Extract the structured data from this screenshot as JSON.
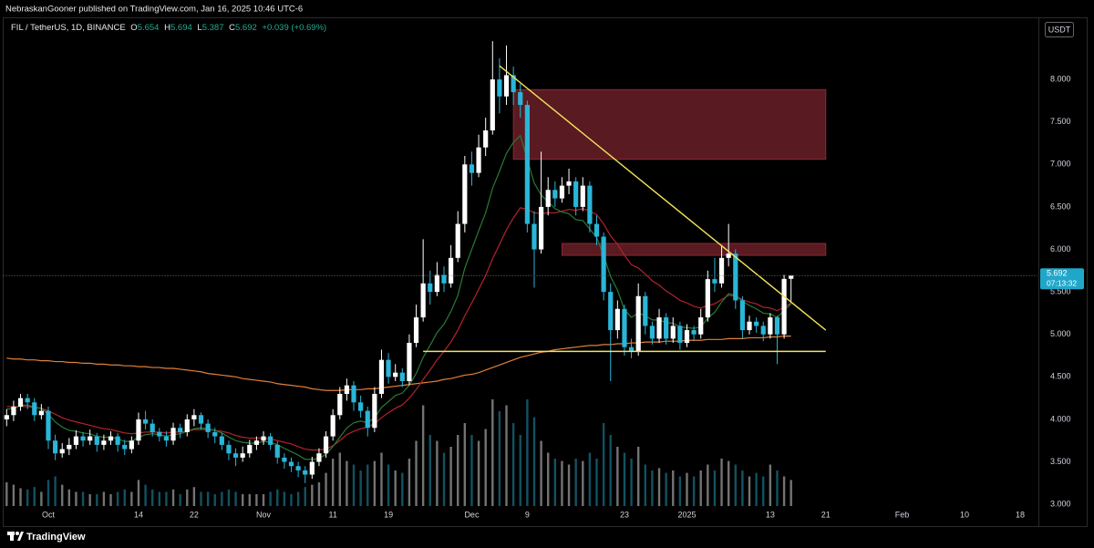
{
  "header": {
    "publisher": "NebraskanGooner published on TradingView.com, Jan 16, 2025 10:46 UTC-6",
    "symbol": "FIL / TetherUS, 1D, BINANCE",
    "ohlc": [
      {
        "label": "O",
        "value": 5.654
      },
      {
        "label": "H",
        "value": 5.694
      },
      {
        "label": "L",
        "value": 5.387
      },
      {
        "label": "C",
        "value": 5.692
      }
    ],
    "change": "+0.039 (+0.69%)"
  },
  "footer": {
    "brand": "TradingView"
  },
  "chart_data": {
    "type": "candlestick",
    "currency": "USDT",
    "countdown": "07:13:32",
    "up_color": "#ffffff",
    "down_color": "#29b6d8",
    "categories": [
      null,
      null,
      null,
      null,
      null,
      null,
      "Oct",
      null,
      null,
      null,
      null,
      null,
      null,
      null,
      null,
      null,
      null,
      null,
      null,
      "14",
      null,
      null,
      null,
      null,
      null,
      null,
      null,
      "22",
      null,
      null,
      null,
      null,
      null,
      null,
      null,
      null,
      null,
      "Nov",
      null,
      null,
      null,
      null,
      null,
      null,
      null,
      null,
      null,
      "11",
      null,
      null,
      null,
      null,
      null,
      null,
      null,
      "19",
      null,
      null,
      null,
      null,
      null,
      null,
      null,
      null,
      null,
      null,
      null,
      "Dec",
      null,
      null,
      null,
      null,
      null,
      null,
      null,
      "9",
      null,
      null,
      null,
      null,
      null,
      null,
      null,
      null,
      null,
      null,
      null,
      null,
      null,
      "23",
      null,
      null,
      null,
      null,
      null,
      null,
      null,
      null,
      "2025",
      null,
      null,
      null,
      null,
      null,
      null,
      null,
      null,
      null,
      null,
      null,
      "13",
      null,
      null,
      null,
      null,
      null,
      null,
      null,
      "21",
      null,
      null,
      null,
      null,
      null,
      null,
      null,
      null,
      null,
      null,
      "Feb",
      null,
      null,
      null,
      null,
      null,
      null,
      null,
      null,
      "10",
      null,
      null,
      null,
      null,
      null,
      null,
      null,
      "18",
      null,
      null
    ],
    "open": [
      4.0,
      4.05,
      4.15,
      4.25,
      4.2,
      4.05,
      4.1,
      3.75,
      3.6,
      3.65,
      3.7,
      3.8,
      3.75,
      3.8,
      3.7,
      3.75,
      3.8,
      3.7,
      3.65,
      3.75,
      4.0,
      3.95,
      3.85,
      3.8,
      3.75,
      3.9,
      3.85,
      4.0,
      4.05,
      3.95,
      3.85,
      3.8,
      3.7,
      3.6,
      3.55,
      3.6,
      3.7,
      3.75,
      3.8,
      3.7,
      3.55,
      3.5,
      3.45,
      3.4,
      3.35,
      3.5,
      3.6,
      3.8,
      4.05,
      4.3,
      4.4,
      4.2,
      4.1,
      3.9,
      4.3,
      4.7,
      4.5,
      4.55,
      4.45,
      4.9,
      5.2,
      5.6,
      5.5,
      5.7,
      5.6,
      5.9,
      6.3,
      7.0,
      6.9,
      7.2,
      7.4,
      8.0,
      7.8,
      8.05,
      7.85,
      7.7,
      6.3,
      6.0,
      6.5,
      6.7,
      6.6,
      6.75,
      6.8,
      6.5,
      6.75,
      6.3,
      6.15,
      5.5,
      5.05,
      5.3,
      4.85,
      4.8,
      5.45,
      5.1,
      4.95,
      5.2,
      4.95,
      5.1,
      4.9,
      5.05,
      5.0,
      5.2,
      5.65,
      5.6,
      5.9,
      5.95,
      5.4,
      5.05,
      5.15,
      5.1,
      5.0,
      5.2,
      5.0,
      5.654,
      null,
      null,
      null,
      null,
      null,
      null,
      null,
      null,
      null,
      null,
      null,
      null,
      null,
      null,
      null,
      null,
      null,
      null,
      null,
      null,
      null,
      null,
      null,
      null,
      null,
      null,
      null,
      null,
      null,
      null,
      null,
      null,
      null,
      null,
      null
    ],
    "high": [
      4.12,
      4.22,
      4.3,
      4.3,
      4.25,
      4.18,
      4.15,
      3.82,
      3.72,
      3.78,
      3.87,
      3.85,
      3.88,
      3.84,
      3.82,
      3.86,
      3.84,
      3.76,
      3.8,
      4.08,
      4.1,
      4.0,
      3.9,
      3.86,
      3.96,
      3.95,
      4.06,
      4.12,
      4.08,
      4.0,
      3.9,
      3.84,
      3.75,
      3.66,
      3.68,
      3.76,
      3.8,
      3.86,
      3.84,
      3.74,
      3.6,
      3.55,
      3.5,
      3.45,
      3.56,
      3.66,
      3.86,
      4.12,
      4.38,
      4.48,
      4.45,
      4.28,
      4.15,
      4.38,
      4.82,
      4.78,
      4.65,
      4.6,
      5.0,
      5.35,
      6.12,
      5.75,
      5.85,
      5.8,
      6.05,
      6.45,
      7.1,
      7.15,
      7.35,
      7.55,
      8.45,
      8.25,
      8.4,
      8.15,
      7.95,
      7.75,
      6.45,
      7.15,
      6.85,
      6.8,
      6.85,
      6.95,
      6.85,
      6.85,
      6.8,
      6.4,
      6.2,
      5.6,
      5.4,
      5.35,
      4.95,
      5.6,
      5.5,
      5.15,
      5.3,
      5.25,
      5.2,
      5.15,
      5.12,
      5.1,
      5.3,
      5.75,
      5.9,
      6.05,
      6.3,
      6.0,
      5.45,
      5.22,
      5.2,
      5.15,
      5.25,
      5.22,
      5.7,
      5.694,
      null,
      null,
      null,
      null,
      null,
      null,
      null,
      null,
      null,
      null,
      null,
      null,
      null,
      null,
      null,
      null,
      null,
      null,
      null,
      null,
      null,
      null,
      null,
      null,
      null,
      null,
      null,
      null,
      null,
      null,
      null,
      null,
      null,
      null,
      null
    ],
    "low": [
      3.92,
      3.98,
      4.1,
      4.12,
      3.98,
      4.0,
      3.65,
      3.52,
      3.55,
      3.58,
      3.65,
      3.68,
      3.7,
      3.62,
      3.64,
      3.7,
      3.62,
      3.58,
      3.6,
      3.7,
      3.88,
      3.8,
      3.74,
      3.68,
      3.7,
      3.78,
      3.8,
      3.92,
      3.88,
      3.78,
      3.72,
      3.64,
      3.52,
      3.45,
      3.5,
      3.55,
      3.64,
      3.7,
      3.64,
      3.48,
      3.42,
      3.38,
      3.32,
      3.25,
      3.3,
      3.45,
      3.55,
      3.75,
      4.0,
      4.22,
      4.1,
      4.02,
      3.8,
      3.85,
      4.25,
      4.42,
      4.45,
      4.38,
      4.4,
      4.85,
      5.15,
      5.35,
      5.45,
      5.5,
      5.55,
      5.85,
      6.2,
      6.75,
      6.85,
      7.1,
      7.35,
      7.6,
      7.7,
      7.7,
      7.55,
      6.2,
      5.55,
      5.95,
      6.4,
      6.5,
      6.55,
      6.65,
      6.4,
      6.45,
      6.2,
      6.05,
      5.4,
      4.45,
      4.95,
      4.75,
      4.72,
      4.75,
      5.0,
      4.88,
      4.9,
      4.88,
      4.9,
      4.82,
      4.85,
      4.92,
      4.95,
      5.15,
      5.5,
      5.55,
      5.8,
      5.3,
      4.95,
      5.0,
      5.02,
      4.92,
      4.95,
      4.65,
      4.95,
      5.387,
      null,
      null,
      null,
      null,
      null,
      null,
      null,
      null,
      null,
      null,
      null,
      null,
      null,
      null,
      null,
      null,
      null,
      null,
      null,
      null,
      null,
      null,
      null,
      null,
      null,
      null,
      null,
      null,
      null,
      null,
      null,
      null,
      null,
      null,
      null
    ],
    "close": [
      4.05,
      4.15,
      4.25,
      4.2,
      4.05,
      4.1,
      3.75,
      3.6,
      3.65,
      3.7,
      3.8,
      3.75,
      3.8,
      3.7,
      3.75,
      3.8,
      3.7,
      3.65,
      3.75,
      4.0,
      3.95,
      3.85,
      3.8,
      3.75,
      3.9,
      3.85,
      4.0,
      4.05,
      3.95,
      3.85,
      3.8,
      3.7,
      3.6,
      3.55,
      3.6,
      3.7,
      3.75,
      3.8,
      3.7,
      3.55,
      3.5,
      3.45,
      3.4,
      3.35,
      3.5,
      3.6,
      3.8,
      4.05,
      4.3,
      4.4,
      4.2,
      4.1,
      3.9,
      4.3,
      4.7,
      4.5,
      4.55,
      4.45,
      4.9,
      5.2,
      5.6,
      5.5,
      5.7,
      5.6,
      5.9,
      6.3,
      7.0,
      6.9,
      7.2,
      7.4,
      8.0,
      7.8,
      8.05,
      7.85,
      7.7,
      6.3,
      6.0,
      6.5,
      6.7,
      6.6,
      6.75,
      6.8,
      6.5,
      6.75,
      6.3,
      6.15,
      5.5,
      5.05,
      5.3,
      4.85,
      4.8,
      5.45,
      5.1,
      4.95,
      5.2,
      4.95,
      5.1,
      4.9,
      5.05,
      5.0,
      5.2,
      5.65,
      5.6,
      5.9,
      5.95,
      5.4,
      5.05,
      5.15,
      5.1,
      5.0,
      5.2,
      5.0,
      5.653,
      5.692,
      null,
      null,
      null,
      null,
      null,
      null,
      null,
      null,
      null,
      null,
      null,
      null,
      null,
      null,
      null,
      null,
      null,
      null,
      null,
      null,
      null,
      null,
      null,
      null,
      null,
      null,
      null,
      null,
      null,
      null,
      null,
      null,
      null,
      null,
      null
    ],
    "volume": [
      20,
      18,
      15,
      14,
      16,
      12,
      22,
      25,
      18,
      14,
      12,
      12,
      10,
      10,
      12,
      10,
      12,
      14,
      12,
      22,
      18,
      14,
      12,
      12,
      14,
      10,
      14,
      16,
      12,
      12,
      10,
      12,
      14,
      12,
      10,
      10,
      10,
      10,
      12,
      14,
      12,
      10,
      12,
      16,
      18,
      20,
      28,
      40,
      45,
      38,
      35,
      30,
      35,
      38,
      45,
      35,
      30,
      28,
      40,
      55,
      85,
      60,
      55,
      45,
      50,
      60,
      70,
      60,
      55,
      65,
      90,
      80,
      85,
      70,
      60,
      90,
      75,
      55,
      45,
      40,
      38,
      35,
      40,
      38,
      45,
      40,
      70,
      60,
      50,
      45,
      40,
      50,
      35,
      30,
      32,
      28,
      30,
      25,
      28,
      25,
      30,
      35,
      30,
      40,
      38,
      35,
      30,
      25,
      28,
      25,
      35,
      30,
      25,
      22,
      null,
      null,
      null,
      null,
      null,
      null,
      null,
      null,
      null,
      null,
      null,
      null,
      null,
      null,
      null,
      null,
      null,
      null,
      null,
      null,
      null,
      null,
      null,
      null,
      null,
      null,
      null,
      null,
      null,
      null,
      null,
      null,
      null,
      null,
      null
    ],
    "vlim": [
      0,
      100
    ],
    "lines": [
      {
        "color": "#e0803a",
        "values": [
          4.72,
          4.71,
          4.71,
          4.7,
          4.7,
          4.69,
          4.69,
          4.68,
          4.68,
          4.67,
          4.67,
          4.66,
          4.66,
          4.65,
          4.65,
          4.64,
          4.64,
          4.63,
          4.63,
          4.62,
          4.62,
          4.61,
          4.61,
          4.6,
          4.6,
          4.59,
          4.58,
          4.57,
          4.56,
          4.54,
          4.53,
          4.52,
          4.51,
          4.5,
          4.48,
          4.47,
          4.46,
          4.45,
          4.44,
          4.42,
          4.41,
          4.4,
          4.39,
          4.38,
          4.36,
          4.35,
          4.34,
          4.34,
          4.34,
          4.35,
          4.35,
          4.35,
          4.36,
          4.36,
          4.37,
          4.38,
          4.39,
          4.4,
          4.41,
          4.42,
          4.43,
          4.44,
          4.45,
          4.47,
          4.48,
          4.5,
          4.52,
          4.53,
          4.55,
          4.58,
          4.61,
          4.64,
          4.67,
          4.7,
          4.73,
          4.75,
          4.77,
          4.79,
          4.8,
          4.82,
          4.83,
          4.84,
          4.85,
          4.86,
          4.87,
          4.87,
          4.88,
          4.88,
          4.89,
          4.89,
          4.9,
          4.9,
          4.91,
          4.91,
          4.91,
          4.92,
          4.92,
          4.92,
          4.93,
          4.93,
          4.93,
          4.94,
          4.94,
          4.94,
          4.95,
          4.95,
          4.95,
          4.96,
          4.96,
          4.96,
          4.97,
          4.97,
          4.98,
          4.98,
          null,
          null,
          null,
          null,
          null,
          null,
          null,
          null,
          null,
          null,
          null,
          null,
          null,
          null,
          null,
          null,
          null,
          null,
          null,
          null,
          null,
          null,
          null,
          null,
          null,
          null,
          null,
          null,
          null,
          null,
          null,
          null,
          null,
          null,
          null
        ]
      },
      {
        "color": "#b3232b",
        "values": [
          4.15,
          4.15,
          4.15,
          4.15,
          4.14,
          4.13,
          4.1,
          4.06,
          4.02,
          3.99,
          3.97,
          3.95,
          3.93,
          3.91,
          3.89,
          3.88,
          3.86,
          3.84,
          3.83,
          3.84,
          3.85,
          3.85,
          3.85,
          3.84,
          3.85,
          3.85,
          3.86,
          3.88,
          3.88,
          3.88,
          3.87,
          3.86,
          3.84,
          3.81,
          3.79,
          3.78,
          3.78,
          3.78,
          3.77,
          3.75,
          3.73,
          3.71,
          3.68,
          3.65,
          3.64,
          3.64,
          3.65,
          3.69,
          3.75,
          3.82,
          3.86,
          3.89,
          3.91,
          3.95,
          4.02,
          4.08,
          4.13,
          4.17,
          4.25,
          4.35,
          4.47,
          4.58,
          4.7,
          4.8,
          4.91,
          5.05,
          5.22,
          5.37,
          5.53,
          5.69,
          5.89,
          6.06,
          6.23,
          6.37,
          6.49,
          6.47,
          6.43,
          6.42,
          6.43,
          6.43,
          6.45,
          6.47,
          6.46,
          6.48,
          6.45,
          6.41,
          6.3,
          6.16,
          6.06,
          5.93,
          5.82,
          5.78,
          5.71,
          5.63,
          5.58,
          5.51,
          5.46,
          5.4,
          5.37,
          5.33,
          5.31,
          5.34,
          5.36,
          5.41,
          5.46,
          5.45,
          5.41,
          5.38,
          5.36,
          5.32,
          5.31,
          5.28,
          5.32,
          5.37,
          null,
          null,
          null,
          null,
          null,
          null,
          null,
          null,
          null,
          null,
          null,
          null,
          null,
          null,
          null,
          null,
          null,
          null,
          null,
          null,
          null,
          null,
          null,
          null,
          null,
          null,
          null,
          null,
          null,
          null,
          null,
          null,
          null,
          null,
          null
        ]
      },
      {
        "color": "#2a7a34",
        "values": [
          4.12,
          4.13,
          4.16,
          4.17,
          4.14,
          4.13,
          4.06,
          3.97,
          3.91,
          3.87,
          3.86,
          3.84,
          3.83,
          3.8,
          3.79,
          3.79,
          3.77,
          3.74,
          3.74,
          3.79,
          3.82,
          3.83,
          3.82,
          3.8,
          3.82,
          3.83,
          3.86,
          3.89,
          3.9,
          3.89,
          3.87,
          3.84,
          3.79,
          3.75,
          3.73,
          3.72,
          3.72,
          3.74,
          3.73,
          3.7,
          3.66,
          3.62,
          3.58,
          3.53,
          3.53,
          3.54,
          3.59,
          3.68,
          3.79,
          3.9,
          3.96,
          3.98,
          3.96,
          4.02,
          4.14,
          4.21,
          4.28,
          4.31,
          4.4,
          4.54,
          4.73,
          4.87,
          5.02,
          5.12,
          5.27,
          5.46,
          5.78,
          6.0,
          6.22,
          6.43,
          6.72,
          6.92,
          7.13,
          7.26,
          7.34,
          7.06,
          6.78,
          6.64,
          6.56,
          6.48,
          6.44,
          6.42,
          6.35,
          6.34,
          6.24,
          6.14,
          5.93,
          5.68,
          5.52,
          5.29,
          5.2,
          5.25,
          5.22,
          5.17,
          5.17,
          5.14,
          5.13,
          5.09,
          5.08,
          5.07,
          5.09,
          5.19,
          5.26,
          5.38,
          5.48,
          5.46,
          5.39,
          5.34,
          5.3,
          5.25,
          5.24,
          5.2,
          5.28,
          5.36,
          null,
          null,
          null,
          null,
          null,
          null,
          null,
          null,
          null,
          null,
          null,
          null,
          null,
          null,
          null,
          null,
          null,
          null,
          null,
          null,
          null,
          null,
          null,
          null,
          null,
          null,
          null,
          null,
          null,
          null,
          null,
          null,
          null,
          null,
          null
        ]
      }
    ],
    "trendlines": [
      {
        "color": "#f2e35c",
        "x": [
          71,
          118
        ],
        "y": [
          8.16,
          5.05
        ]
      },
      {
        "color": "#f2e35c",
        "x": [
          60,
          118
        ],
        "y": [
          4.8,
          4.8
        ]
      }
    ],
    "zones": [
      {
        "color": "#5a1a21",
        "x": [
          73,
          118
        ],
        "y": [
          7.06,
          7.88
        ]
      },
      {
        "color": "#5a1a21",
        "x": [
          80,
          118
        ],
        "y": [
          5.93,
          6.07
        ]
      }
    ],
    "ylim": [
      2.98,
      8.72
    ],
    "yticks": [
      {
        "value": 3,
        "label": "3.000"
      },
      {
        "value": 3.5,
        "label": "3.500"
      },
      {
        "value": 4,
        "label": "4.000"
      },
      {
        "value": 4.5,
        "label": "4.500"
      },
      {
        "value": 5,
        "label": "5.000"
      },
      {
        "value": 5.5,
        "label": "5.500"
      },
      {
        "value": 6,
        "label": "6.000"
      },
      {
        "value": 6.5,
        "label": "6.500"
      },
      {
        "value": 7,
        "label": "7.000"
      },
      {
        "value": 7.5,
        "label": "7.500"
      },
      {
        "value": 8,
        "label": "8.000"
      }
    ],
    "grid": false
  }
}
